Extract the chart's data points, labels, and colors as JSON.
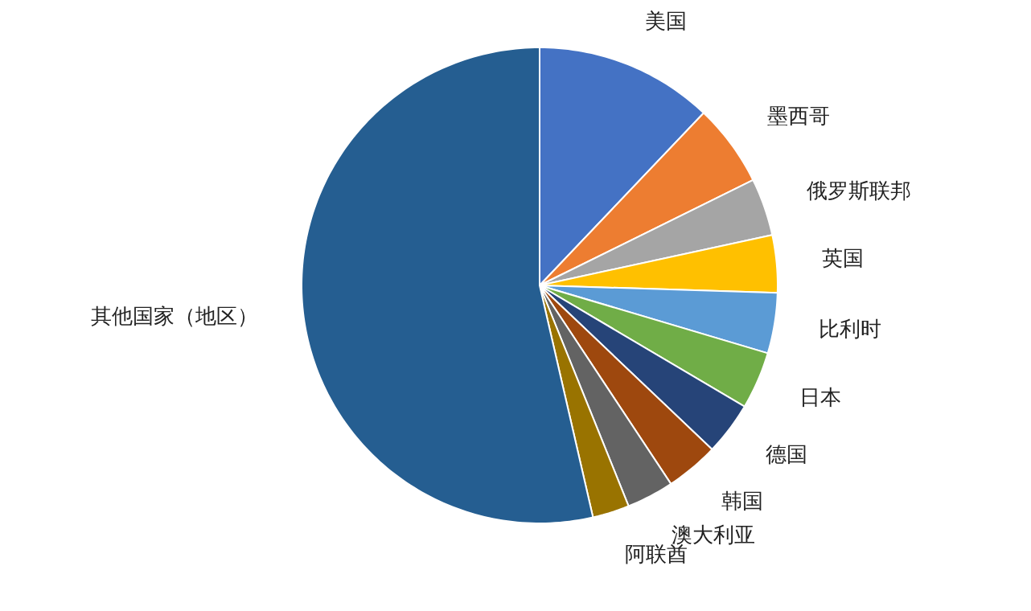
{
  "chart_data": {
    "type": "pie",
    "categories": [
      "美国",
      "墨西哥",
      "俄罗斯联邦",
      "英国",
      "比利时",
      "日本",
      "德国",
      "韩国",
      "澳大利亚",
      "阿联酋",
      "其他国家（地区）"
    ],
    "values": [
      12.1,
      5.6,
      3.9,
      3.9,
      4.1,
      3.9,
      3.6,
      3.6,
      3.2,
      2.5,
      53.6
    ],
    "colors": [
      "#4472c4",
      "#ed7d31",
      "#a5a5a5",
      "#ffc000",
      "#5b9bd5",
      "#70ad47",
      "#264478",
      "#9e480e",
      "#636363",
      "#997300",
      "#255e91"
    ]
  }
}
